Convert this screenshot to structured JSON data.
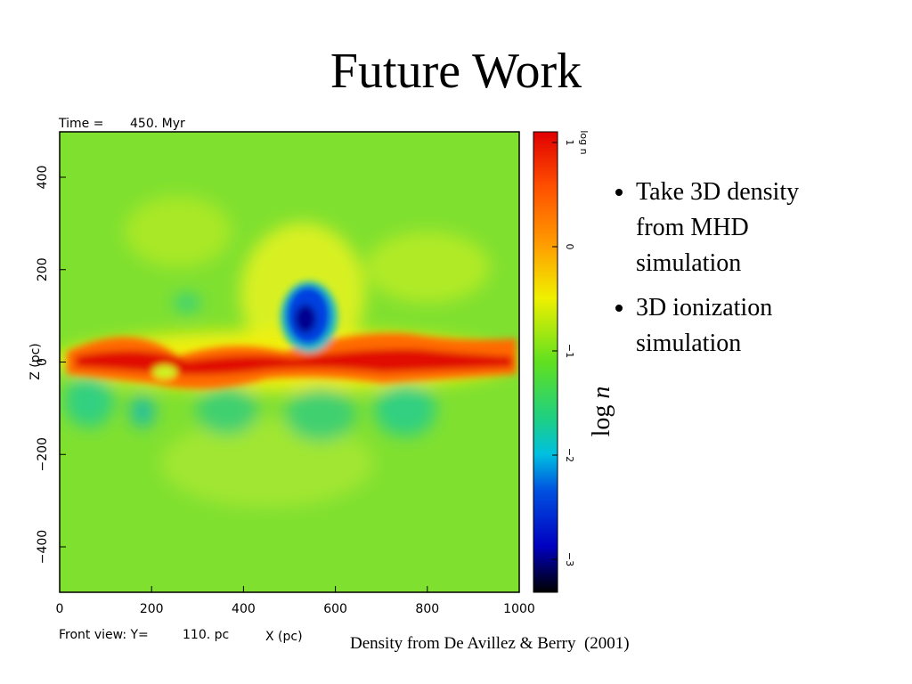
{
  "title": "Future Work",
  "bullets": [
    "Take 3D density from MHD simulation",
    "3D ionization simulation"
  ],
  "figure": {
    "time_label": "Time =",
    "time_value": "450. Myr",
    "view_label": "Front view: Y=",
    "view_value": "110. pc",
    "x_label": "X (pc)",
    "y_label": "Z (pc)",
    "xticks": [
      "0",
      "200",
      "400",
      "600",
      "800",
      "1000"
    ],
    "yticks": [
      "400",
      "200",
      "0",
      "−200",
      "−400"
    ],
    "colorbar_label": "log n",
    "colorbar_ticks": [
      "1",
      "0",
      "−1",
      "−2",
      "−3"
    ]
  },
  "colorbar_title": {
    "text": "log",
    "var": "n"
  },
  "caption": "Density from De Avillez & Berry  (2001)"
}
